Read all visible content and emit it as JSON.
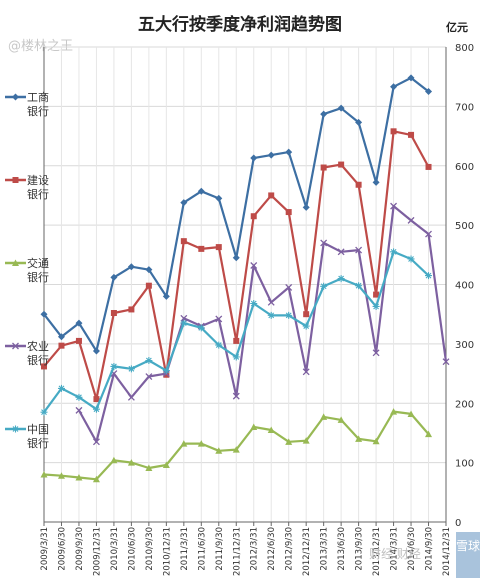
{
  "chart_data": {
    "type": "line",
    "title": "五大行按季度净利润趋势图",
    "unit": "亿元",
    "ylim": [
      0,
      800
    ],
    "yticks": [
      0,
      100,
      200,
      300,
      400,
      500,
      600,
      700,
      800
    ],
    "x": [
      "2009/3/31",
      "2009/6/30",
      "2009/9/30",
      "2009/12/31",
      "2010/3/31",
      "2010/6/30",
      "2010/9/30",
      "2010/12/31",
      "2011/3/31",
      "2011/6/30",
      "2011/9/30",
      "2011/12/31",
      "2012/3/31",
      "2012/6/30",
      "2012/9/30",
      "2012/12/31",
      "2013/3/31",
      "2013/6/30",
      "2013/9/30",
      "2013/12/31",
      "2014/3/31",
      "2014/6/30",
      "2014/9/30",
      "2014/12/31"
    ],
    "series": [
      {
        "name": "工商银行",
        "color": "#3d6fa3",
        "marker": "diamond",
        "values": [
          350,
          312,
          335,
          288,
          412,
          430,
          425,
          380,
          538,
          557,
          545,
          445,
          613,
          618,
          623,
          530,
          687,
          697,
          673,
          572,
          733,
          748,
          725,
          null
        ]
      },
      {
        "name": "建设银行",
        "color": "#be4b48",
        "marker": "square",
        "values": [
          262,
          297,
          305,
          207,
          352,
          358,
          398,
          248,
          473,
          460,
          463,
          305,
          515,
          550,
          522,
          350,
          597,
          602,
          568,
          383,
          658,
          652,
          598,
          null
        ]
      },
      {
        "name": "交通银行",
        "color": "#98b954",
        "marker": "triangle",
        "values": [
          80,
          78,
          75,
          72,
          104,
          100,
          91,
          96,
          132,
          132,
          120,
          122,
          160,
          155,
          135,
          137,
          177,
          172,
          140,
          136,
          186,
          182,
          148,
          null
        ]
      },
      {
        "name": "农业银行",
        "color": "#7d60a0",
        "marker": "x",
        "values": [
          null,
          null,
          188,
          135,
          250,
          210,
          245,
          250,
          343,
          330,
          342,
          212,
          432,
          370,
          395,
          253,
          470,
          455,
          458,
          285,
          532,
          508,
          485,
          270
        ]
      },
      {
        "name": "中国银行",
        "color": "#46aac4",
        "marker": "star",
        "values": [
          185,
          225,
          210,
          190,
          262,
          258,
          272,
          255,
          335,
          327,
          298,
          278,
          368,
          348,
          348,
          330,
          397,
          410,
          398,
          363,
          455,
          443,
          415,
          null
        ]
      }
    ]
  },
  "legend": [
    {
      "line1": "工商",
      "line2": "银行"
    },
    {
      "line1": "建设",
      "line2": "银行"
    },
    {
      "line1": "交通",
      "line2": "银行"
    },
    {
      "line1": "农业",
      "line2": "银行"
    },
    {
      "line1": "中国",
      "line2": "银行"
    }
  ],
  "watermark_top": "@楼林之王",
  "watermark_bottom": "财经 财经",
  "watermark_corner": "雪球"
}
